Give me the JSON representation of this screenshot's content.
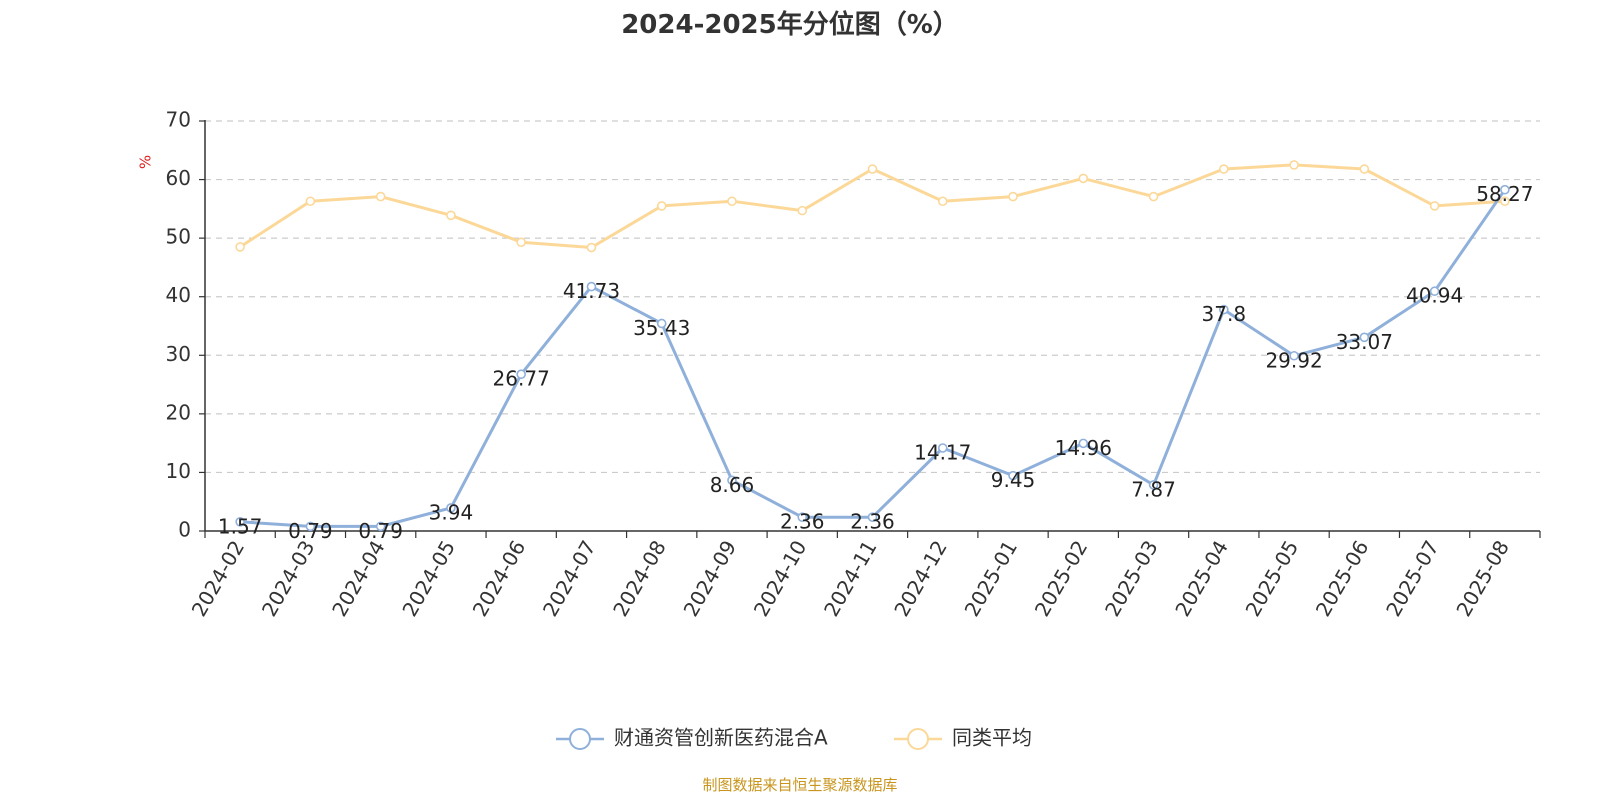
{
  "chart_data": {
    "type": "line",
    "title": "2024-2025年分位图（%）",
    "ylabel": "%",
    "xlabel": "",
    "ylim": [
      0,
      70
    ],
    "yticks": [
      0,
      10,
      20,
      30,
      40,
      50,
      60,
      70
    ],
    "grid": "horizontal dashed",
    "legend_position": "bottom-center",
    "categories": [
      "2024-02",
      "2024-03",
      "2024-04",
      "2024-05",
      "2024-06",
      "2024-07",
      "2024-08",
      "2024-09",
      "2024-10",
      "2024-11",
      "2024-12",
      "2025-01",
      "2025-02",
      "2025-03",
      "2025-04",
      "2025-05",
      "2025-06",
      "2025-07",
      "2025-08"
    ],
    "series": [
      {
        "name": "财通资管创新医药混合A",
        "color": "#8fb0da",
        "values": [
          1.57,
          0.79,
          0.79,
          3.94,
          26.77,
          41.73,
          35.43,
          8.66,
          2.36,
          2.36,
          14.17,
          9.45,
          14.96,
          7.87,
          37.8,
          29.92,
          33.07,
          40.94,
          58.27
        ],
        "labels": [
          "1.57",
          "0.79",
          "0.79",
          "3.94",
          "26.77",
          "41.73",
          "35.43",
          "8.66",
          "2.36",
          "2.36",
          "14.17",
          "9.45",
          "14.96",
          "7.87",
          "37.8",
          "29.92",
          "33.07",
          "40.94",
          "58.27"
        ]
      },
      {
        "name": "同类平均",
        "color": "#fcd898",
        "values": [
          48.5,
          56.3,
          57.1,
          53.9,
          49.3,
          48.4,
          55.5,
          56.3,
          54.7,
          61.8,
          56.3,
          57.1,
          60.2,
          57.1,
          61.8,
          62.5,
          61.8,
          55.5,
          56.3
        ]
      }
    ]
  },
  "source": "制图数据来自恒生聚源数据库"
}
